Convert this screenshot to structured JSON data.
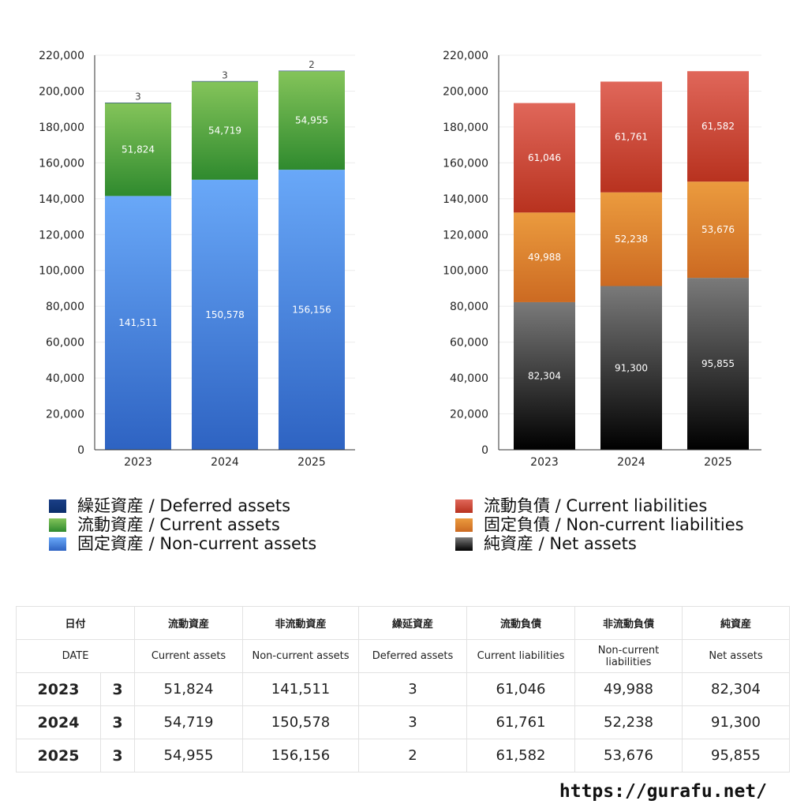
{
  "chart_data": [
    {
      "type": "bar",
      "stacked": true,
      "categories": [
        "2023",
        "2024",
        "2025"
      ],
      "ylim": [
        0,
        220000
      ],
      "yticks": [
        "0",
        "20,000",
        "40,000",
        "60,000",
        "80,000",
        "100,000",
        "120,000",
        "140,000",
        "160,000",
        "180,000",
        "200,000",
        "220,000"
      ],
      "series": [
        {
          "name": "固定資産 / Non-current assets",
          "values": [
            141511,
            150578,
            156156
          ],
          "color": "#4a86e8"
        },
        {
          "name": "流動資産 / Current assets",
          "values": [
            51824,
            54719,
            54955
          ],
          "color": "#4a9e3c"
        },
        {
          "name": "繰延資産 / Deferred assets",
          "values": [
            3,
            3,
            2
          ],
          "color": "#0b2d6b"
        }
      ],
      "labels": {
        "series0": [
          "141,511",
          "150,578",
          "156,156"
        ],
        "series1": [
          "51,824",
          "54,719",
          "54,955"
        ],
        "series2": [
          "3",
          "3",
          "2"
        ]
      },
      "grid": true
    },
    {
      "type": "bar",
      "stacked": true,
      "categories": [
        "2023",
        "2024",
        "2025"
      ],
      "ylim": [
        0,
        220000
      ],
      "yticks": [
        "0",
        "20,000",
        "40,000",
        "60,000",
        "80,000",
        "100,000",
        "120,000",
        "140,000",
        "160,000",
        "180,000",
        "200,000",
        "220,000"
      ],
      "series": [
        {
          "name": "純資産 / Net assets",
          "values": [
            82304,
            91300,
            95855
          ],
          "color": "#333333"
        },
        {
          "name": "固定負債 / Non-current liabilities",
          "values": [
            49988,
            52238,
            53676
          ],
          "color": "#e08a2e"
        },
        {
          "name": "流動負債 / Current liabilities",
          "values": [
            61046,
            61761,
            61582
          ],
          "color": "#cc4a3a"
        }
      ],
      "labels": {
        "series0": [
          "82,304",
          "91,300",
          "95,855"
        ],
        "series1": [
          "49,988",
          "52,238",
          "53,676"
        ],
        "series2": [
          "61,046",
          "61,761",
          "61,582"
        ]
      },
      "grid": true
    }
  ],
  "legend_left": [
    {
      "label": "繰延資産 / Deferred assets",
      "color": "#0b2d6b"
    },
    {
      "label": "流動資産 / Current assets",
      "color": "#4a9e3c"
    },
    {
      "label": "固定資産 / Non-current assets",
      "color": "#4a86e8"
    }
  ],
  "legend_right": [
    {
      "label": "流動負債 / Current liabilities",
      "color": "#cc4a3a"
    },
    {
      "label": "固定負債 / Non-current liabilities",
      "color": "#e08a2e"
    },
    {
      "label": "純資産 / Net assets",
      "color": "#222222"
    }
  ],
  "table": {
    "header_jp": [
      "日付",
      "流動資産",
      "非流動資産",
      "繰延資産",
      "流動負債",
      "非流動負債",
      "純資産"
    ],
    "header_en": [
      "DATE",
      "Current assets",
      "Non-current assets",
      "Deferred assets",
      "Current liabilities",
      "Non-current liabilities",
      "Net assets"
    ],
    "rows": [
      {
        "year": "2023",
        "month": "3",
        "values": [
          "51,824",
          "141,511",
          "3",
          "61,046",
          "49,988",
          "82,304"
        ]
      },
      {
        "year": "2024",
        "month": "3",
        "values": [
          "54,719",
          "150,578",
          "3",
          "61,761",
          "52,238",
          "91,300"
        ]
      },
      {
        "year": "2025",
        "month": "3",
        "values": [
          "54,955",
          "156,156",
          "2",
          "61,582",
          "53,676",
          "95,855"
        ]
      }
    ]
  },
  "site_url": "https://gurafu.net/"
}
